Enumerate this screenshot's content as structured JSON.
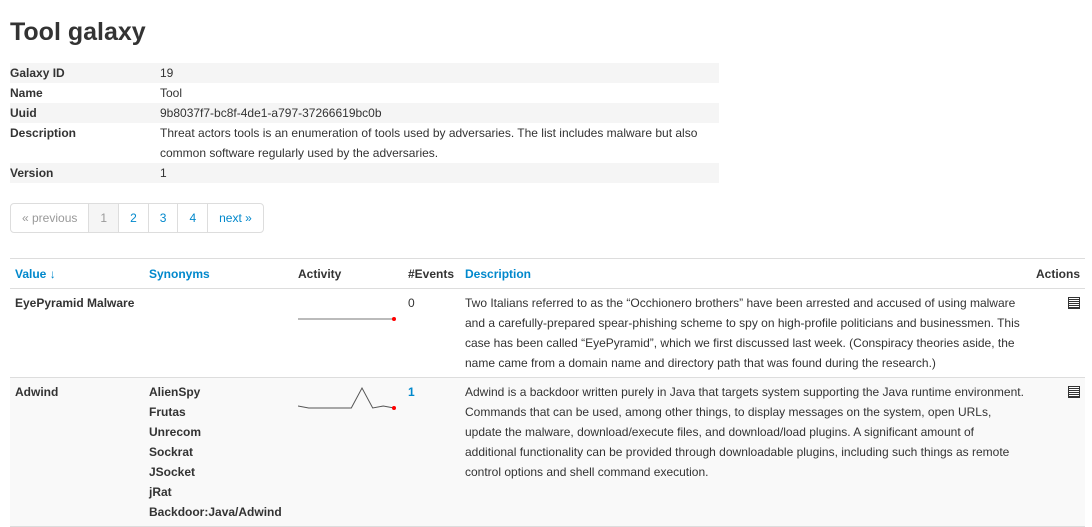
{
  "title": "Tool galaxy",
  "meta": [
    {
      "label": "Galaxy ID",
      "value": "19"
    },
    {
      "label": "Name",
      "value": "Tool"
    },
    {
      "label": "Uuid",
      "value": "9b8037f7-bc8f-4de1-a797-37266619bc0b"
    },
    {
      "label": "Description",
      "value": "Threat actors tools is an enumeration of tools used by adversaries. The list includes malware but also common software regularly used by the adversaries."
    },
    {
      "label": "Version",
      "value": "1"
    }
  ],
  "pagination": {
    "previous": "« previous",
    "pages": [
      "1",
      "2",
      "3",
      "4"
    ],
    "current": "1",
    "next": "next »"
  },
  "columns": {
    "value": "Value ↓",
    "synonyms": "Synonyms",
    "activity": "Activity",
    "events": "#Events",
    "description": "Description",
    "actions": "Actions"
  },
  "rows": [
    {
      "value": "EyePyramid Malware",
      "synonyms": [],
      "events": "0",
      "sparkline": [
        0,
        0,
        0,
        0,
        0,
        0,
        0,
        0
      ],
      "description": "Two Italians referred to as the “Occhionero brothers” have been arrested and accused of using malware and a carefully-prepared spear-phishing scheme to spy on high-profile politicians and businessmen. This case has been called “EyePyramid”, which we first discussed last week. (Conspiracy theories aside, the name came from a domain name and directory path that was found during the research.)",
      "action_icon": "list-icon"
    },
    {
      "value": "Adwind",
      "synonyms": [
        "AlienSpy",
        "Frutas",
        "Unrecom",
        "Sockrat",
        "JSocket",
        "jRat",
        "Backdoor:Java/Adwind"
      ],
      "events": "1",
      "sparkline": [
        0.1,
        0,
        0,
        0,
        0,
        0,
        1,
        0,
        0.1,
        0
      ],
      "description": "Adwind is a backdoor written purely in Java that targets system supporting the Java runtime environment. Commands that can be used, among other things, to display messages on the system, open URLs, update the malware, download/execute files, and download/load plugins. A significant amount of additional functionality can be provided through downloadable plugins, including such things as remote control options and shell command execution.",
      "action_icon": "list-icon"
    }
  ]
}
